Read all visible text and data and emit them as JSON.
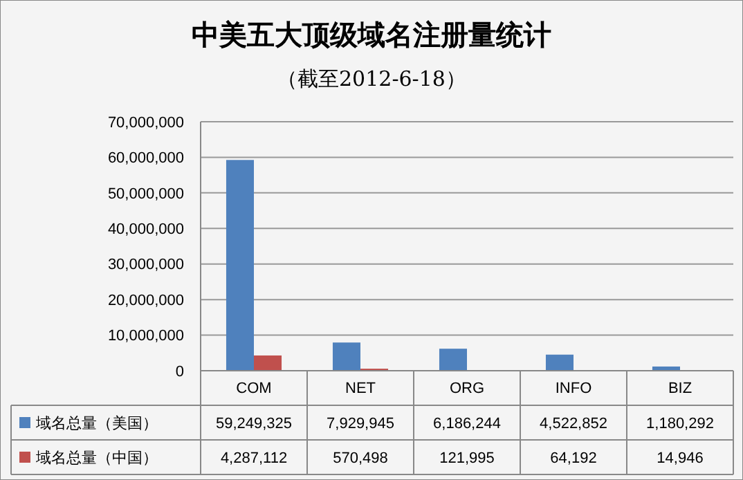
{
  "chart_data": {
    "type": "bar",
    "title": "中美五大顶级域名注册量统计",
    "subtitle": "（截至2012-6-18）",
    "categories": [
      "COM",
      "NET",
      "ORG",
      "INFO",
      "BIZ"
    ],
    "series": [
      {
        "name": "域名总量（美国）",
        "color": "#4f81bd",
        "values": [
          59249325,
          7929945,
          6186244,
          4522852,
          1180292
        ],
        "value_labels": [
          "59,249,325",
          "7,929,945",
          "6,186,244",
          "4,522,852",
          "1,180,292"
        ]
      },
      {
        "name": "域名总量（中国）",
        "color": "#c0504d",
        "values": [
          4287112,
          570498,
          121995,
          64192,
          14946
        ],
        "value_labels": [
          "4,287,112",
          "570,498",
          "121,995",
          "64,192",
          "14,946"
        ]
      }
    ],
    "ylim": [
      0,
      70000000
    ],
    "yticks": [
      {
        "value": 0,
        "label": "0"
      },
      {
        "value": 10000000,
        "label": "10,000,000"
      },
      {
        "value": 20000000,
        "label": "20,000,000"
      },
      {
        "value": 30000000,
        "label": "30,000,000"
      },
      {
        "value": 40000000,
        "label": "40,000,000"
      },
      {
        "value": 50000000,
        "label": "50,000,000"
      },
      {
        "value": 60000000,
        "label": "60,000,000"
      },
      {
        "value": 70000000,
        "label": "70,000,000"
      }
    ],
    "grid": "y",
    "legend": "bottom"
  }
}
